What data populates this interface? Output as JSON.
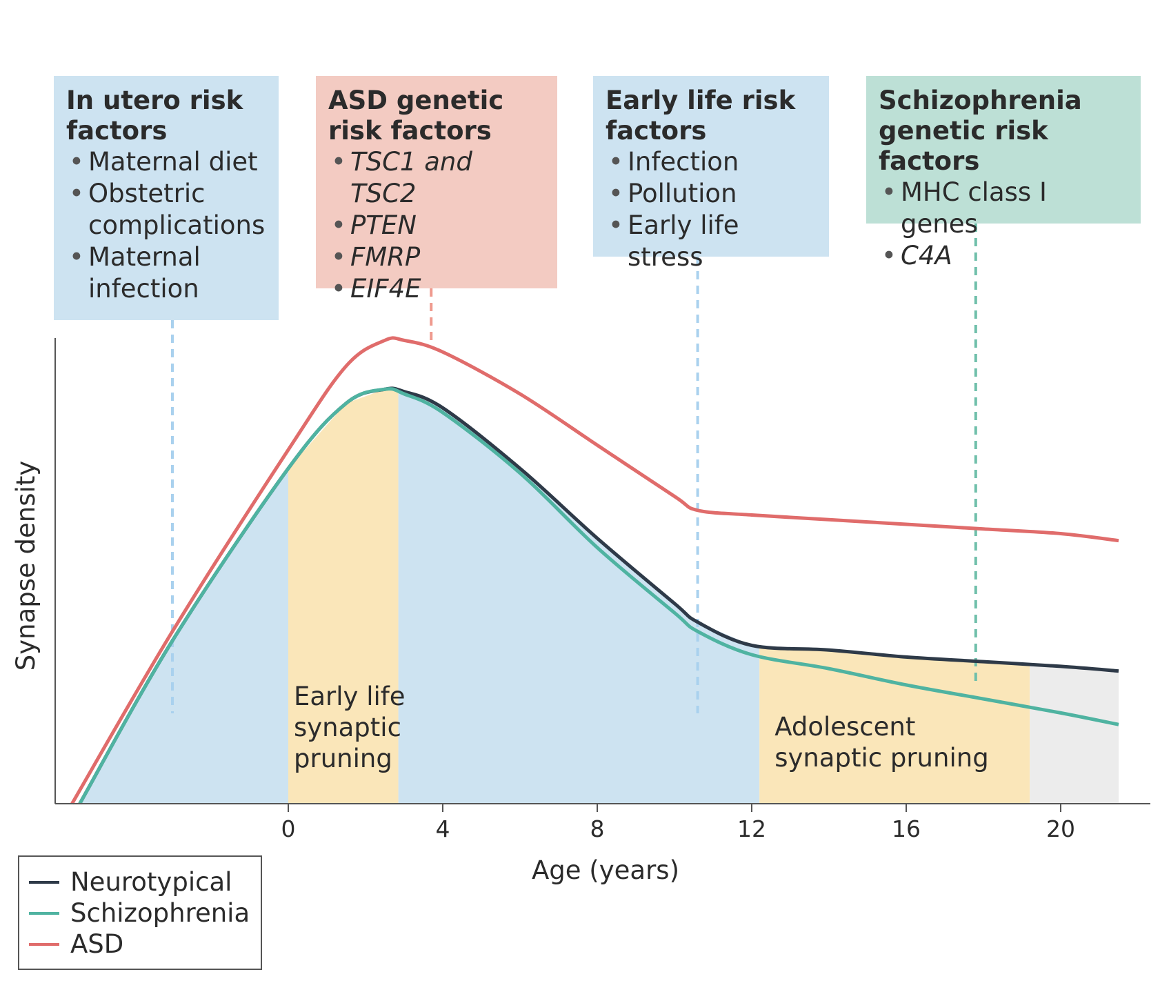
{
  "risk_boxes": [
    {
      "title": "In utero risk factors",
      "items": [
        "Maternal diet",
        "Obstetric complications",
        "Maternal infection"
      ],
      "italic": false,
      "color": "#cde3f1"
    },
    {
      "title": "ASD genetic risk factors",
      "items": [
        "TSC1 and TSC2",
        "PTEN",
        "FMRP",
        "EIF4E"
      ],
      "italic": true,
      "color": "#f3cbc2"
    },
    {
      "title": "Early life risk factors",
      "items": [
        "Infection",
        "Pollution",
        "Early life stress"
      ],
      "italic": false,
      "color": "#cde3f1"
    },
    {
      "title": "Schizophrenia genetic risk factors",
      "items": [
        "MHC class I genes",
        "C4A"
      ],
      "italic_items": [
        false,
        true
      ],
      "color": "#bde0d6"
    }
  ],
  "chart_data": {
    "type": "line",
    "xlabel": "Age (years)",
    "ylabel": "Synapse density",
    "x_ticks": [
      0,
      4,
      8,
      12,
      16,
      20
    ],
    "xlim": [
      -5.8,
      21.5
    ],
    "ylim": [
      0,
      1
    ],
    "y_ticks_shown": false,
    "series": [
      {
        "name": "Neurotypical",
        "color": "#2e3a48",
        "x": [
          -5.4,
          -3,
          0,
          1.5,
          2.5,
          3,
          4,
          6,
          8,
          10,
          10.6,
          12,
          14,
          16,
          18,
          20,
          21.5
        ],
        "y": [
          0.0,
          0.35,
          0.72,
          0.86,
          0.89,
          0.885,
          0.85,
          0.72,
          0.57,
          0.43,
          0.39,
          0.34,
          0.33,
          0.315,
          0.305,
          0.295,
          0.285
        ]
      },
      {
        "name": "Schizophrenia",
        "color": "#4fb3a1",
        "x": [
          -5.4,
          -3,
          0,
          1.5,
          2.5,
          3,
          4,
          6,
          8,
          10,
          10.6,
          12,
          14,
          16,
          18,
          20,
          21.5
        ],
        "y": [
          0.0,
          0.35,
          0.72,
          0.86,
          0.89,
          0.88,
          0.84,
          0.71,
          0.55,
          0.41,
          0.37,
          0.32,
          0.29,
          0.255,
          0.225,
          0.195,
          0.17
        ]
      },
      {
        "name": "ASD",
        "color": "#e06c6b",
        "x": [
          -5.6,
          -3,
          0,
          1.5,
          2.5,
          3,
          4,
          6,
          8,
          10,
          10.6,
          12,
          14,
          16,
          18,
          20,
          21.5
        ],
        "y": [
          0.0,
          0.37,
          0.76,
          0.94,
          0.995,
          0.995,
          0.97,
          0.88,
          0.77,
          0.66,
          0.63,
          0.62,
          0.61,
          0.6,
          0.59,
          0.58,
          0.565
        ]
      }
    ],
    "shaded_regions": [
      {
        "from": -5.4,
        "to": 0,
        "color": "#cde3f1",
        "label": ""
      },
      {
        "from": 0,
        "to": 2.85,
        "color": "#fae6b9",
        "label": "Early life synaptic pruning"
      },
      {
        "from": 2.85,
        "to": 12.2,
        "color": "#cde3f1",
        "label": ""
      },
      {
        "from": 12.2,
        "to": 19.2,
        "color": "#fae6b9",
        "label": "Adolescent synaptic pruning"
      },
      {
        "from": 19.2,
        "to": 21.5,
        "color": "#ececec",
        "label": ""
      }
    ],
    "risk_markers": [
      {
        "x": -3.0,
        "color": "#a9d1ee"
      },
      {
        "x": 3.7,
        "color": "#ef9a8e"
      },
      {
        "x": 10.6,
        "color": "#a9d1ee"
      },
      {
        "x": 17.8,
        "color": "#6fbfaa"
      }
    ],
    "legend": {
      "placement": "bottom-left",
      "entries": [
        "Neurotypical",
        "Schizophrenia",
        "ASD"
      ]
    }
  }
}
